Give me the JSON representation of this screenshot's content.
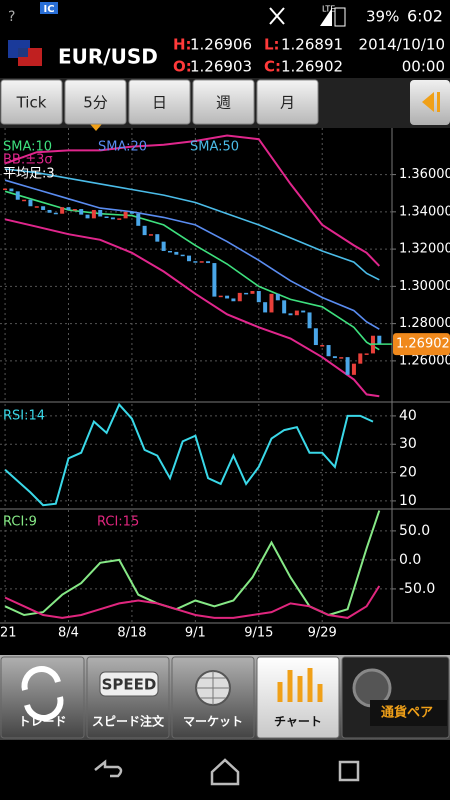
{
  "status_bar": {
    "badge": "IC",
    "network": "LTE",
    "battery": "39%",
    "time": "6:02"
  },
  "header": {
    "pair": "EUR/USD",
    "high_label": "H:",
    "high": "1.26906",
    "low_label": "L:",
    "low": "1.26891",
    "date": "2014/10/10",
    "open_label": "O:",
    "open": "1.26903",
    "close_label": "C:",
    "close": "1.26902",
    "time": "00:00"
  },
  "tabs": [
    "Tick",
    "5分",
    "日",
    "週",
    "月"
  ],
  "chart_data": [
    {
      "type": "candlestick",
      "candle_label": "平均足:3",
      "up_color": "#e8403a",
      "down_color": "#4aa6e8",
      "values": [
        1.3525,
        1.351,
        1.3465,
        1.3465,
        1.343,
        1.343,
        1.341,
        1.3395,
        1.339,
        1.3425,
        1.341,
        1.3415,
        1.3385,
        1.3365,
        1.341,
        1.3375,
        1.337,
        1.336,
        1.3365,
        1.34,
        1.339,
        1.3325,
        1.3275,
        1.328,
        1.324,
        1.319,
        1.3185,
        1.317,
        1.3165,
        1.3135,
        1.313,
        1.3135,
        1.3125,
        1.2945,
        1.295,
        1.2935,
        1.292,
        1.2965,
        1.296,
        1.2975,
        1.2915,
        1.286,
        1.296,
        1.2925,
        1.2855,
        1.2845,
        1.287,
        1.286,
        1.2775,
        1.2685,
        1.2685,
        1.2625,
        1.2615,
        1.262,
        1.2525,
        1.2585,
        1.264,
        1.264,
        1.2735,
        1.26902
      ],
      "series": [
        {
          "name": "SMA:10",
          "color": "#3ee07e",
          "x": [
            0,
            5,
            10,
            15,
            20,
            25,
            30,
            35,
            40,
            45,
            50,
            55,
            57,
            59
          ],
          "values": [
            1.351,
            1.346,
            1.341,
            1.339,
            1.338,
            1.333,
            1.322,
            1.312,
            1.3,
            1.293,
            1.289,
            1.278,
            1.27,
            1.266
          ]
        },
        {
          "name": "SMA:20",
          "color": "#5a8cf0",
          "x": [
            0,
            5,
            10,
            15,
            20,
            25,
            30,
            35,
            40,
            45,
            50,
            55,
            57,
            59
          ],
          "values": [
            1.357,
            1.352,
            1.347,
            1.342,
            1.34,
            1.337,
            1.333,
            1.324,
            1.314,
            1.303,
            1.294,
            1.287,
            1.281,
            1.277
          ]
        },
        {
          "name": "SMA:50",
          "color": "#4bbce8",
          "x": [
            0,
            5,
            10,
            15,
            20,
            25,
            30,
            35,
            40,
            45,
            50,
            55,
            57,
            59
          ],
          "values": [
            1.363,
            1.361,
            1.358,
            1.355,
            1.352,
            1.349,
            1.345,
            1.339,
            1.333,
            1.326,
            1.319,
            1.313,
            1.307,
            1.3035
          ]
        }
      ],
      "bands": {
        "name": "BB:±3σ",
        "color": "#e0268c",
        "x": [
          0,
          5,
          10,
          15,
          20,
          25,
          30,
          35,
          40,
          45,
          50,
          55,
          57,
          59
        ],
        "upper": [
          1.366,
          1.372,
          1.373,
          1.373,
          1.375,
          1.376,
          1.378,
          1.381,
          1.379,
          1.355,
          1.333,
          1.322,
          1.318,
          1.311
        ],
        "lower": [
          1.336,
          1.332,
          1.328,
          1.325,
          1.318,
          1.308,
          1.296,
          1.285,
          1.278,
          1.272,
          1.262,
          1.25,
          1.242,
          1.241
        ]
      },
      "last_price": 1.26902,
      "last_price_color": "#f0891c",
      "ylim": [
        1.239,
        1.385
      ],
      "yticks": [
        {
          "value": 1.36,
          "label": "1.36000"
        },
        {
          "value": 1.34,
          "label": "1.34000"
        },
        {
          "value": 1.32,
          "label": "1.32000"
        },
        {
          "value": 1.3,
          "label": "1.30000"
        },
        {
          "value": 1.28,
          "label": "1.28000"
        },
        {
          "value": 1.26,
          "label": "1.26000"
        }
      ],
      "grid": true
    },
    {
      "type": "line",
      "series": [
        {
          "name": "RSI:14",
          "color": "#3ad8e8",
          "x": [
            0,
            2,
            4,
            6,
            8,
            10,
            12,
            14,
            16,
            18,
            20,
            22,
            24,
            26,
            28,
            30,
            32,
            34,
            36,
            38,
            40,
            42,
            44,
            46,
            48,
            50,
            52,
            54,
            56,
            58
          ],
          "values": [
            21,
            17,
            13,
            8.5,
            9,
            25,
            27,
            38,
            34,
            44,
            39,
            28,
            26,
            18,
            31,
            33,
            18,
            16,
            26,
            16,
            22,
            32,
            35,
            36,
            27,
            27,
            22,
            40,
            40,
            38
          ]
        }
      ],
      "ylim": [
        7.5,
        44.2
      ],
      "yticks": [
        40,
        30,
        20,
        10
      ],
      "grid": true
    },
    {
      "type": "line",
      "series": [
        {
          "name": "RCI:9",
          "color": "#86e886",
          "x": [
            0,
            3,
            6,
            9,
            12,
            15,
            18,
            21,
            24,
            27,
            30,
            33,
            36,
            39,
            42,
            45,
            48,
            51,
            54,
            57,
            59
          ],
          "values": [
            -80,
            -95,
            -90,
            -60,
            -40,
            -5,
            0,
            -60,
            -75,
            -85,
            -70,
            -80,
            -70,
            -30,
            30,
            -30,
            -80,
            -95,
            -85,
            20,
            85
          ]
        },
        {
          "name": "RCI:15",
          "color": "#e0267e",
          "x": [
            0,
            3,
            6,
            9,
            12,
            15,
            18,
            21,
            24,
            27,
            30,
            33,
            36,
            39,
            42,
            45,
            48,
            51,
            54,
            57,
            59
          ],
          "values": [
            -65,
            -80,
            -95,
            -100,
            -95,
            -85,
            -75,
            -70,
            -75,
            -85,
            -95,
            -100,
            -100,
            -95,
            -90,
            -75,
            -80,
            -95,
            -100,
            -80,
            -45
          ]
        }
      ],
      "ylim": [
        -107,
        86
      ],
      "yticks": [
        {
          "value": 50,
          "label": "50.0"
        },
        {
          "value": 0,
          "label": "0.0"
        },
        {
          "value": -50,
          "label": "-50.0"
        }
      ],
      "xlim": [
        -0.8,
        61
      ],
      "xticks": [
        {
          "value": 0,
          "label": "21"
        },
        {
          "value": 10,
          "label": "8/4"
        },
        {
          "value": 20,
          "label": "8/18"
        },
        {
          "value": 30,
          "label": "9/1"
        },
        {
          "value": 40,
          "label": "9/15"
        },
        {
          "value": 50,
          "label": "9/29"
        }
      ],
      "grid": true
    }
  ],
  "bottom_nav": {
    "trade": "トレード",
    "speed_icon": "SPEED",
    "speed_order": "スピード注文",
    "market": "マーケット",
    "chart": "チャート",
    "pairs": "通貨ペア"
  }
}
